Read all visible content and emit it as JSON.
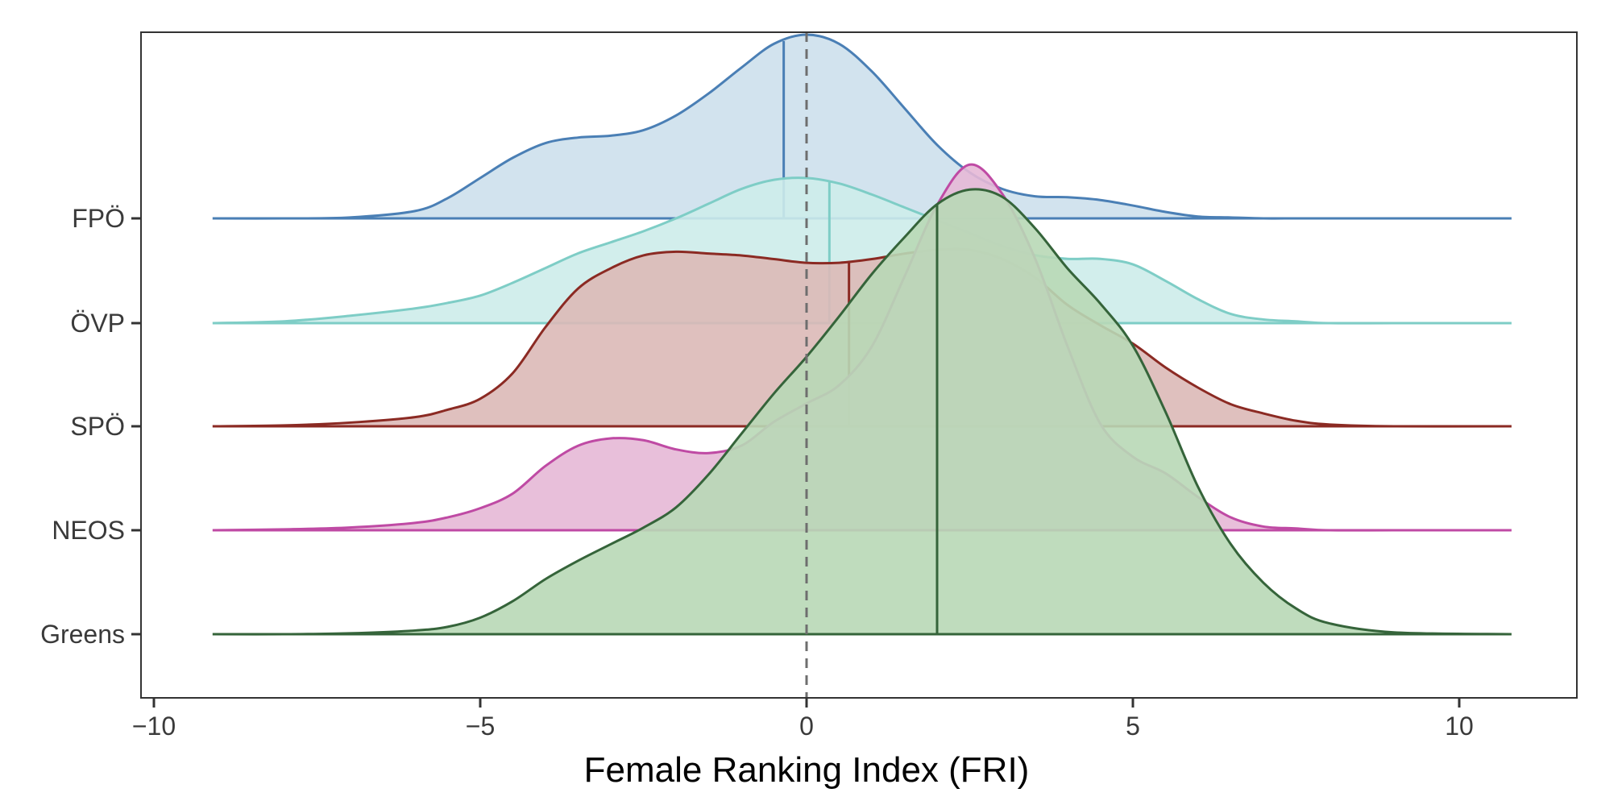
{
  "chart_data": {
    "type": "area",
    "subtype": "ridgeline-density",
    "title": "",
    "xlabel": "Female Ranking Index (FRI)",
    "ylabel": "",
    "xlim": [
      -10,
      12
    ],
    "x_ticks": [
      -10,
      -5,
      0,
      5,
      10
    ],
    "x_tick_labels": [
      "−10",
      "−5",
      "0",
      "5",
      "10"
    ],
    "reference_line": {
      "x": 0,
      "style": "dashed",
      "color": "#6e6e6e"
    },
    "grid": false,
    "legend": "none",
    "density_x": [
      -9.1,
      -8,
      -7,
      -6,
      -5.5,
      -5,
      -4.5,
      -4,
      -3.5,
      -3,
      -2.5,
      -2,
      -1.5,
      -1,
      -0.5,
      0,
      0.5,
      1,
      1.5,
      2,
      2.5,
      3,
      3.5,
      4,
      4.5,
      5,
      5.5,
      6,
      6.5,
      7,
      7.5,
      8,
      9,
      10.8
    ],
    "series": [
      {
        "name": "FPÖ",
        "color": "#4a7fb5",
        "fill": "#cde0ec",
        "mean_line_x": -0.35,
        "density": [
          0,
          0,
          0.005,
          0.04,
          0.11,
          0.22,
          0.33,
          0.41,
          0.44,
          0.45,
          0.48,
          0.56,
          0.68,
          0.82,
          0.95,
          1.0,
          0.95,
          0.8,
          0.6,
          0.4,
          0.25,
          0.16,
          0.12,
          0.115,
          0.1,
          0.07,
          0.035,
          0.01,
          0.005,
          0,
          0,
          0,
          0,
          0
        ]
      },
      {
        "name": "ÖVP",
        "color": "#7ecdc6",
        "fill": "#cdecea",
        "mean_line_x": 0.35,
        "density": [
          0,
          0.01,
          0.04,
          0.08,
          0.11,
          0.15,
          0.22,
          0.3,
          0.38,
          0.44,
          0.5,
          0.57,
          0.65,
          0.73,
          0.78,
          0.79,
          0.76,
          0.7,
          0.63,
          0.56,
          0.49,
          0.42,
          0.37,
          0.35,
          0.35,
          0.32,
          0.23,
          0.13,
          0.05,
          0.02,
          0.01,
          0,
          0,
          0
        ]
      },
      {
        "name": "SPÖ",
        "color": "#8b2a23",
        "fill": "#dbb9b7",
        "mean_line_x": 0.65,
        "density": [
          0,
          0.005,
          0.02,
          0.05,
          0.09,
          0.15,
          0.29,
          0.54,
          0.75,
          0.86,
          0.93,
          0.95,
          0.94,
          0.93,
          0.91,
          0.89,
          0.89,
          0.91,
          0.94,
          0.96,
          0.96,
          0.91,
          0.81,
          0.66,
          0.55,
          0.45,
          0.32,
          0.21,
          0.12,
          0.07,
          0.03,
          0.01,
          0,
          0
        ]
      },
      {
        "name": "NEOS",
        "color": "#bf4aa4",
        "fill": "#e6b8d6",
        "mean_line_x": 2.0,
        "density": [
          0,
          0.005,
          0.015,
          0.04,
          0.07,
          0.12,
          0.2,
          0.35,
          0.46,
          0.5,
          0.49,
          0.44,
          0.42,
          0.46,
          0.59,
          0.69,
          0.79,
          1.0,
          1.38,
          1.77,
          1.99,
          1.83,
          1.48,
          1.0,
          0.58,
          0.4,
          0.31,
          0.18,
          0.07,
          0.02,
          0.01,
          0,
          0,
          0
        ]
      },
      {
        "name": "Greens",
        "color": "#35643a",
        "fill": "#b8d8b6",
        "mean_line_x": 2.0,
        "density": [
          0,
          0,
          0.005,
          0.02,
          0.04,
          0.09,
          0.18,
          0.3,
          0.4,
          0.49,
          0.58,
          0.69,
          0.87,
          1.09,
          1.31,
          1.51,
          1.73,
          1.96,
          2.16,
          2.34,
          2.42,
          2.38,
          2.21,
          1.99,
          1.8,
          1.57,
          1.21,
          0.8,
          0.49,
          0.28,
          0.14,
          0.06,
          0.01,
          0
        ]
      }
    ]
  }
}
